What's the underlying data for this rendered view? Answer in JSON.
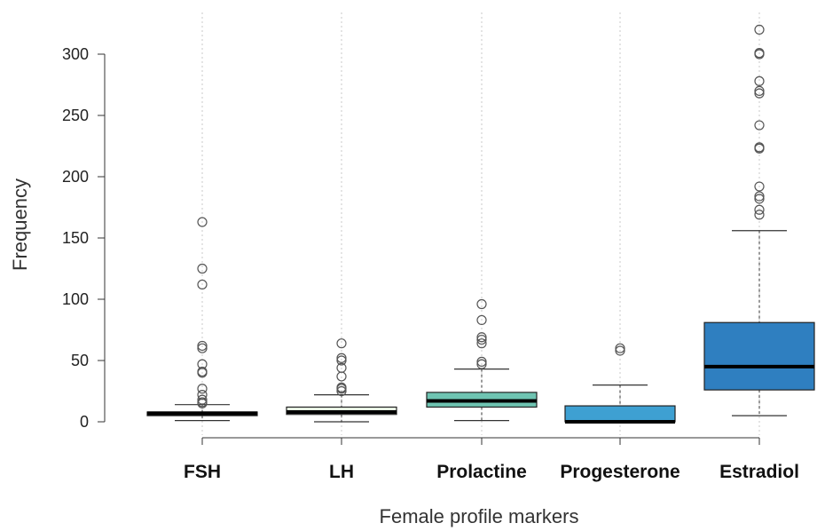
{
  "chart_data": {
    "type": "boxplot",
    "title": "",
    "xlabel": "Female profile markers",
    "ylabel": "Frequency",
    "ylim": [
      0,
      320
    ],
    "yticks": [
      0,
      50,
      100,
      150,
      200,
      250,
      300
    ],
    "grid": "vertical dotted lines at categories",
    "categories": [
      "FSH",
      "LH",
      "Prolactine",
      "Progesterone",
      "Estradiol"
    ],
    "boxes": [
      {
        "name": "FSH",
        "min": 1,
        "q1": 5,
        "median": 7,
        "q3": 8,
        "max": 14,
        "color": "#0b0b0b",
        "outliers": [
          15,
          16,
          18,
          22,
          27,
          40,
          41,
          47,
          60,
          62,
          112,
          125,
          163
        ]
      },
      {
        "name": "LH",
        "min": 0,
        "q1": 6,
        "median": 8,
        "q3": 12,
        "max": 22,
        "color": "#e8f3e4",
        "outliers": [
          25,
          27,
          28,
          37,
          44,
          50,
          52,
          64
        ]
      },
      {
        "name": "Prolactine",
        "min": 1,
        "q1": 12,
        "median": 17,
        "q3": 24,
        "max": 43,
        "color": "#6fc4b2",
        "outliers": [
          47,
          49,
          64,
          67,
          69,
          83,
          96
        ]
      },
      {
        "name": "Progesterone",
        "min": 0,
        "q1": 0,
        "median": 0,
        "q3": 13,
        "max": 30,
        "color": "#3ea0d2",
        "outliers": [
          58,
          60
        ]
      },
      {
        "name": "Estradiol",
        "min": 5,
        "q1": 26,
        "median": 45,
        "q3": 81,
        "max": 156,
        "color": "#2f7fc0",
        "outliers": [
          169,
          173,
          182,
          184,
          192,
          223,
          224,
          242,
          268,
          270,
          278,
          300,
          301,
          320
        ]
      }
    ]
  }
}
